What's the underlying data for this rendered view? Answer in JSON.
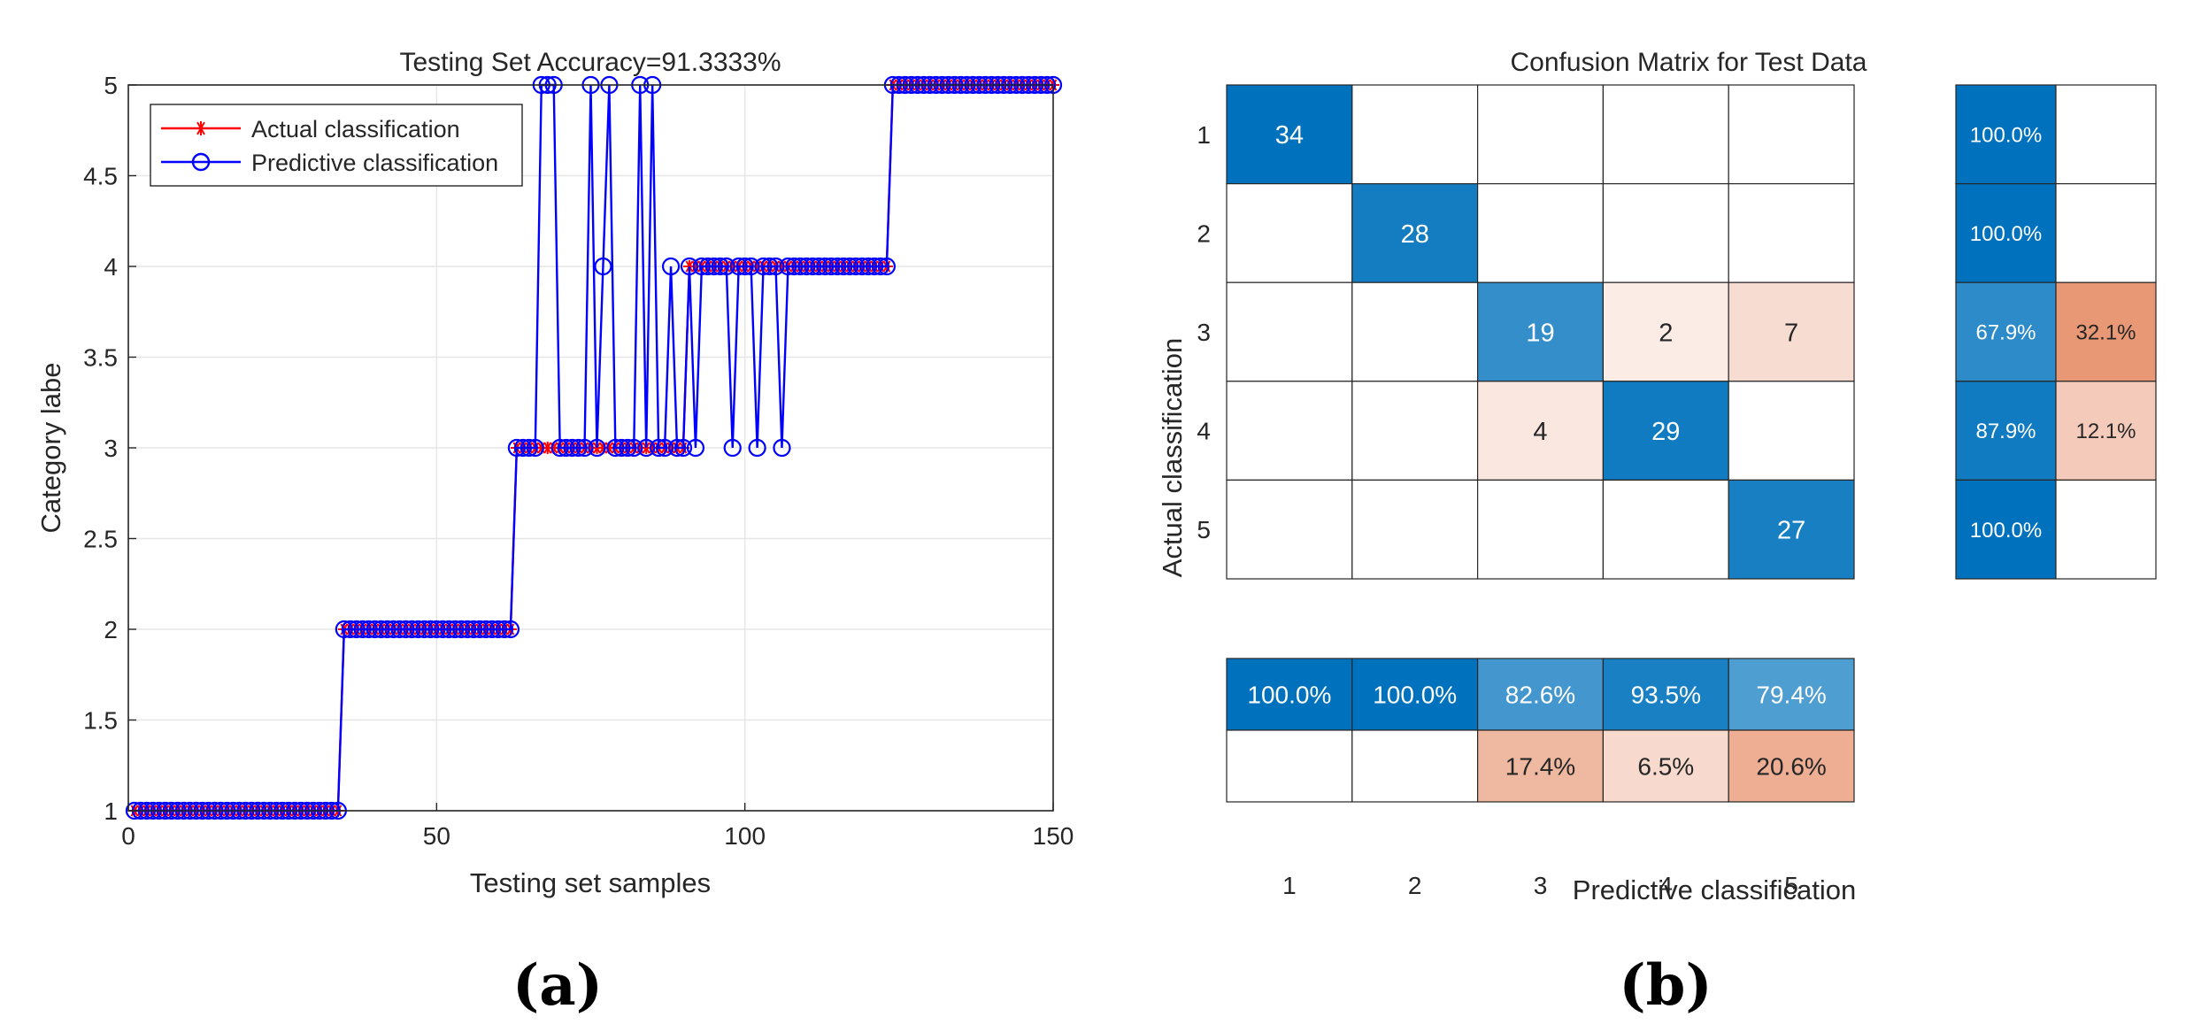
{
  "chart_data": [
    {
      "type": "line",
      "panel_label": "(a)",
      "title": "Testing Set Accuracy=91.3333%",
      "xlabel": "Testing set samples",
      "ylabel": "Category labe",
      "xlim": [
        0,
        150
      ],
      "ylim": [
        1,
        5
      ],
      "xticks": [
        0,
        50,
        100,
        150
      ],
      "yticks": [
        1,
        1.5,
        2,
        2.5,
        3,
        3.5,
        4,
        4.5,
        5
      ],
      "grid": true,
      "legend_position": "top-left",
      "series": [
        {
          "name": "Actual classification",
          "color": "#ff0000",
          "marker": "asterisk",
          "segments": [
            {
              "from": 1,
              "to": 34,
              "value": 1
            },
            {
              "from": 35,
              "to": 62,
              "value": 2
            },
            {
              "from": 63,
              "to": 90,
              "value": 3
            },
            {
              "from": 91,
              "to": 123,
              "value": 4
            },
            {
              "from": 124,
              "to": 150,
              "value": 5
            }
          ]
        },
        {
          "name": "Predictive classification",
          "color": "#0000ff",
          "marker": "circle",
          "base_from": "Actual classification",
          "overrides": [
            {
              "x": 67,
              "value": 5
            },
            {
              "x": 68,
              "value": 5
            },
            {
              "x": 69,
              "value": 5
            },
            {
              "x": 75,
              "value": 5
            },
            {
              "x": 77,
              "value": 4
            },
            {
              "x": 78,
              "value": 5
            },
            {
              "x": 83,
              "value": 5
            },
            {
              "x": 85,
              "value": 5
            },
            {
              "x": 88,
              "value": 4
            },
            {
              "x": 98,
              "value": 3
            },
            {
              "x": 102,
              "value": 3
            },
            {
              "x": 106,
              "value": 3
            },
            {
              "x": 92,
              "value": 3
            }
          ]
        }
      ]
    },
    {
      "type": "heatmap",
      "panel_label": "(b)",
      "title": "Confusion Matrix for Test Data",
      "xlabel": "Predictive classification",
      "ylabel": "Actual classification",
      "row_labels": [
        "1",
        "2",
        "3",
        "4",
        "5"
      ],
      "col_labels": [
        "1",
        "2",
        "3",
        "4",
        "5"
      ],
      "matrix": [
        [
          34,
          0,
          0,
          0,
          0
        ],
        [
          0,
          28,
          0,
          0,
          0
        ],
        [
          0,
          0,
          19,
          2,
          7
        ],
        [
          0,
          0,
          4,
          29,
          0
        ],
        [
          0,
          0,
          0,
          0,
          27
        ]
      ],
      "row_summary": [
        [
          "100.0%",
          ""
        ],
        [
          "100.0%",
          ""
        ],
        [
          "67.9%",
          "32.1%"
        ],
        [
          "87.9%",
          "12.1%"
        ],
        [
          "100.0%",
          ""
        ]
      ],
      "row_summary_values": [
        [
          100.0,
          0
        ],
        [
          100.0,
          0
        ],
        [
          67.9,
          32.1
        ],
        [
          87.9,
          12.1
        ],
        [
          100.0,
          0
        ]
      ],
      "column_summary": [
        [
          "100.0%",
          "100.0%",
          "82.6%",
          "93.5%",
          "79.4%"
        ],
        [
          "",
          "",
          "17.4%",
          "6.5%",
          "20.6%"
        ]
      ],
      "column_summary_values": [
        [
          100.0,
          100.0,
          82.6,
          93.5,
          79.4
        ],
        [
          0,
          0,
          17.4,
          6.5,
          20.6
        ]
      ],
      "colors": {
        "correct_strong": "#0072bd",
        "correct_light": "#d9e8f5",
        "incorrect_strong": "#d95319",
        "incorrect_light": "#f5e0d8"
      }
    }
  ]
}
